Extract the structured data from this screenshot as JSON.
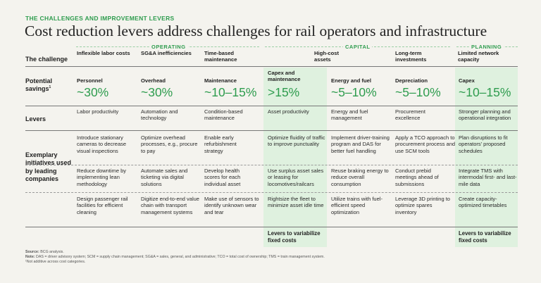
{
  "eyebrow": "THE CHALLENGES AND IMPROVEMENT LEVERS",
  "title": "Cost reduction levers address challenges for rail operators and infrastructure",
  "groups": {
    "operating": "OPERATING",
    "capital": "CAPITAL",
    "planning": "PLANNING"
  },
  "row_labels": {
    "challenge": "The challenge",
    "savings": "Potential savings",
    "savings_sup": "1",
    "levers": "Levers",
    "initiatives": "Exemplary initiatives used by leading companies"
  },
  "challenges": {
    "c1": "Inflexible labor costs",
    "c2": "SG&A inefficiencies",
    "c3": "Time-based maintenance",
    "c45": "High-cost assets",
    "c6": "Long-term investments",
    "c7": "Limited network capacity"
  },
  "savings": [
    {
      "label": "Personnel",
      "value": "~30%"
    },
    {
      "label": "Overhead",
      "value": "~30%"
    },
    {
      "label": "Maintenance",
      "value": "~10–15%"
    },
    {
      "label": "Capex and maintenance",
      "value": ">15%"
    },
    {
      "label": "Energy and fuel",
      "value": "~5–10%"
    },
    {
      "label": "Depreciation",
      "value": "~5–10%"
    },
    {
      "label": "Capex",
      "value": "~10–15%"
    }
  ],
  "levers": [
    "Labor productivity",
    "Automation and technology",
    "Condition-based maintenance",
    "Asset productivity",
    "Energy and fuel management",
    "Procurement excellence",
    "Stronger planning and operational integration"
  ],
  "initiatives": [
    [
      "Introduce stationary cameras to decrease visual inspections",
      "Optimize overhead processes, e.g., procure to pay",
      "Enable early refurbishment strategy",
      "Optimize fluidity of traffic to improve punctuality",
      "Implement driver-training program and DAS for better fuel handling",
      "Apply a TCO approach to procurement process and use SCM tools",
      "Plan disruptions to fit operators’ proposed schedules"
    ],
    [
      "Reduce downtime by implementing lean methodology",
      "Automate sales and ticketing via digital solutions",
      "Develop health scores for each individual asset",
      "Use surplus asset sales or leasing for locomotives/railcars",
      "Reuse braking energy to reduce overall consumption",
      "Conduct prebid meetings ahead of submissions",
      "Integrate TMS with intermodal first- and last-mile data"
    ],
    [
      "Design passenger rail facilities for efficient cleaning",
      "Digitize end-to-end value chain with transport management systems",
      "Make use of sensors to identify unknown wear and tear",
      "Rightsize the fleet to minimize asset idle time",
      "Utilize trains with fuel-efficient speed optimization",
      "Leverage 3D printing to optimize spares inventory",
      "Create capacity-optimized timetables"
    ]
  ],
  "variabilize": {
    "capital": "Levers to variabilize fixed costs",
    "planning": "Levers to variabilize fixed costs"
  },
  "footer": {
    "source_label": "Source:",
    "source_text": "BCG analysis.",
    "note_label": "Note:",
    "note_text": "DAS = driver advisory system; SCM = supply chain management; SG&A = sales, general, and administrative; TCO = total cost of ownership; TMS = train management system.",
    "footnote": "¹Not additive across cost categories."
  },
  "colors": {
    "accent": "#2e9c4e",
    "highlight": "#dff1df",
    "background": "#f4f3ee"
  }
}
